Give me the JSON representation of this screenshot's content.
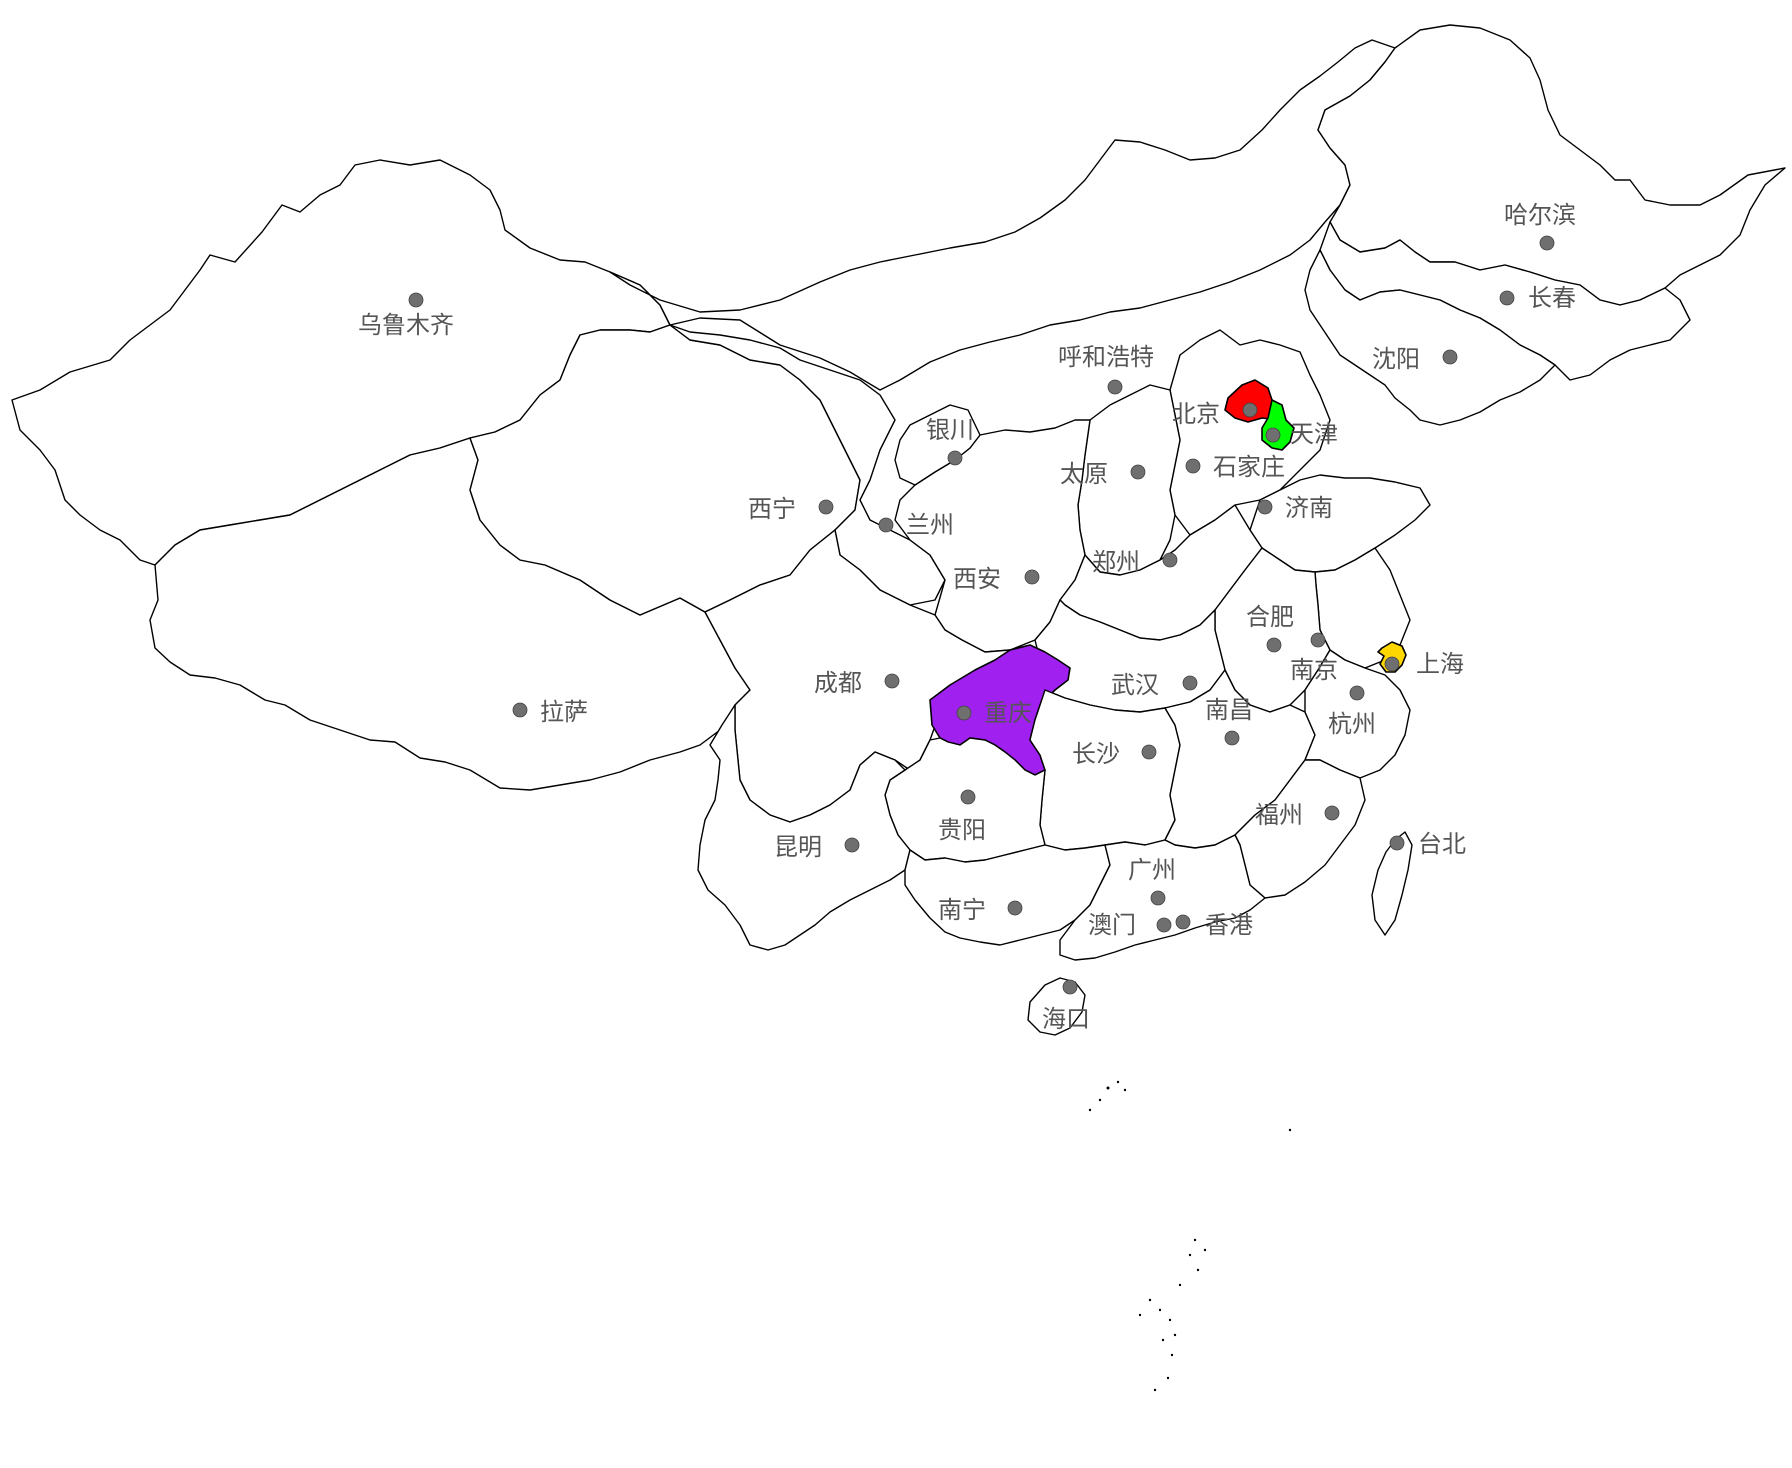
{
  "highlight_colors": {
    "beijing": "#ff0000",
    "tianjin": "#00ff00",
    "shanghai": "#ffd700",
    "chongqing": "#a020f0"
  },
  "cities": [
    {
      "id": "urumqi",
      "name": "乌鲁木齐"
    },
    {
      "id": "lhasa",
      "name": "拉萨"
    },
    {
      "id": "xining",
      "name": "西宁"
    },
    {
      "id": "lanzhou",
      "name": "兰州"
    },
    {
      "id": "yinchuan",
      "name": "银川"
    },
    {
      "id": "hohhot",
      "name": "呼和浩特"
    },
    {
      "id": "beijing",
      "name": "北京"
    },
    {
      "id": "tianjin",
      "name": "天津"
    },
    {
      "id": "shijiazhuang",
      "name": "石家庄"
    },
    {
      "id": "taiyuan",
      "name": "太原"
    },
    {
      "id": "jinan",
      "name": "济南"
    },
    {
      "id": "zhengzhou",
      "name": "郑州"
    },
    {
      "id": "xian",
      "name": "西安"
    },
    {
      "id": "chengdu",
      "name": "成都"
    },
    {
      "id": "chongqing",
      "name": "重庆"
    },
    {
      "id": "wuhan",
      "name": "武汉"
    },
    {
      "id": "hefei",
      "name": "合肥"
    },
    {
      "id": "nanjing",
      "name": "南京"
    },
    {
      "id": "shanghai",
      "name": "上海"
    },
    {
      "id": "hangzhou",
      "name": "杭州"
    },
    {
      "id": "nanchang",
      "name": "南昌"
    },
    {
      "id": "changsha",
      "name": "长沙"
    },
    {
      "id": "guiyang",
      "name": "贵阳"
    },
    {
      "id": "kunming",
      "name": "昆明"
    },
    {
      "id": "nanning",
      "name": "南宁"
    },
    {
      "id": "guangzhou",
      "name": "广州"
    },
    {
      "id": "macau",
      "name": "澳门"
    },
    {
      "id": "hongkong",
      "name": "香港"
    },
    {
      "id": "fuzhou",
      "name": "福州"
    },
    {
      "id": "taipei",
      "name": "台北"
    },
    {
      "id": "haikou",
      "name": "海口"
    },
    {
      "id": "shenyang",
      "name": "沈阳"
    },
    {
      "id": "changchun",
      "name": "长春"
    },
    {
      "id": "harbin",
      "name": "哈尔滨"
    }
  ]
}
